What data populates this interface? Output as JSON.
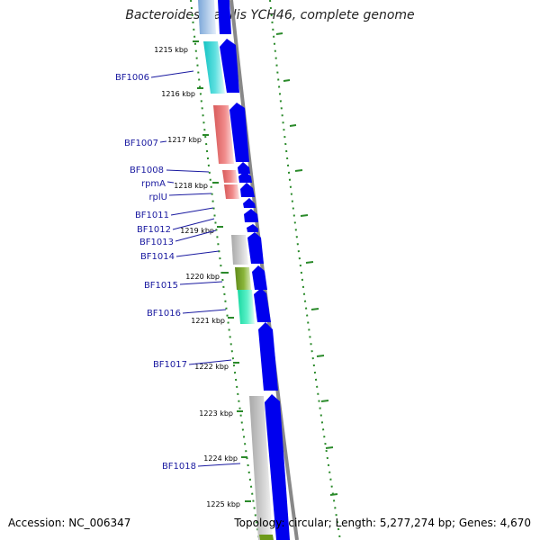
{
  "title": "Bacteroides fragilis YCH46, complete genome",
  "footer": {
    "accession": "Accession: NC_006347",
    "summary": "Topology: circular; Length: 5,277,274 bp; Genes: 4,670"
  },
  "colors": {
    "backbone": "#888888",
    "forward_arrow": "#0000ee",
    "tick_green": "#2a8a2a",
    "gene_label": "#1a1aa0"
  },
  "kbp_ticks": [
    "1215 kbp",
    "1216 kbp",
    "1217 kbp",
    "1218 kbp",
    "1219 kbp",
    "1220 kbp",
    "1221 kbp",
    "1222 kbp",
    "1223 kbp",
    "1224 kbp",
    "1225 kbp"
  ],
  "genes": [
    "BF1006",
    "BF1007",
    "BF1008",
    "rpmA",
    "rplU",
    "BF1011",
    "BF1012",
    "BF1013",
    "BF1014",
    "BF1015",
    "BF1016",
    "BF1017",
    "BF1018"
  ]
}
